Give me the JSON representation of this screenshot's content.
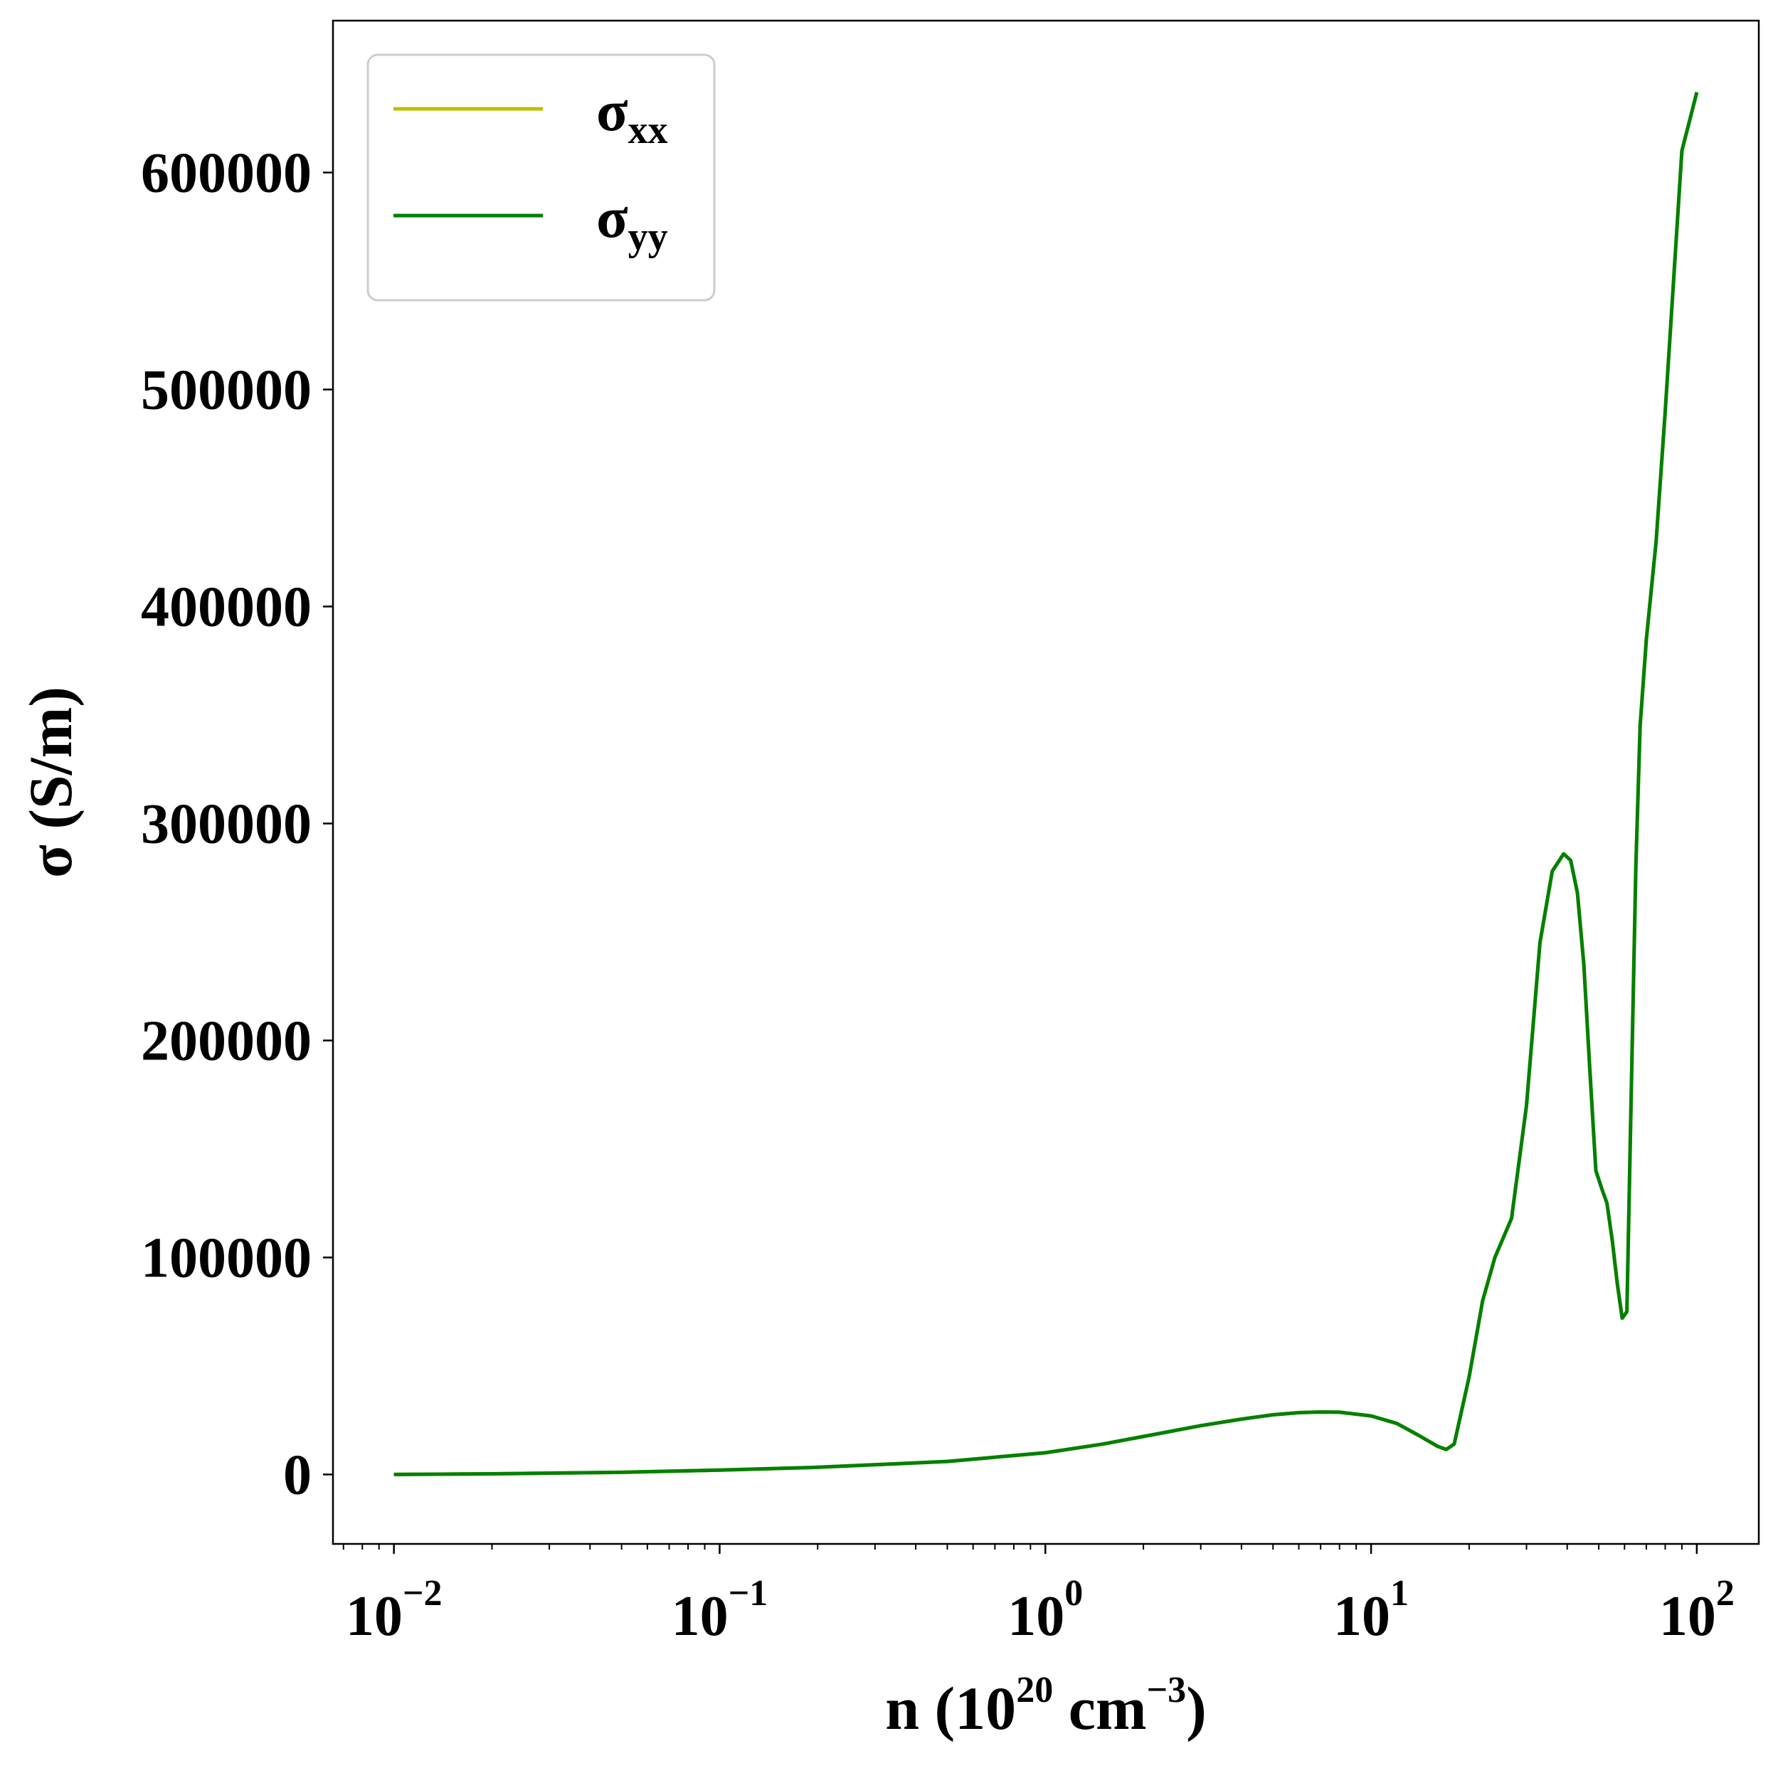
{
  "chart_data": {
    "type": "line",
    "xscale": "log",
    "xlim": [
      0.0065,
      155
    ],
    "ylim": [
      -32000,
      670000
    ],
    "grid": false,
    "legend_position": "upper-left",
    "xlabel": {
      "base": "n (10",
      "exp": "20",
      "mid": " cm",
      "exp2": "−3",
      "end": ")"
    },
    "ylabel": "σ (S/m)",
    "x_ticks": [
      {
        "value": 0.01,
        "base": "10",
        "exp": "−2"
      },
      {
        "value": 0.1,
        "base": "10",
        "exp": "−1"
      },
      {
        "value": 1,
        "base": "10",
        "exp": "0"
      },
      {
        "value": 10,
        "base": "10",
        "exp": "1"
      },
      {
        "value": 100,
        "base": "10",
        "exp": "2"
      }
    ],
    "y_ticks": [
      {
        "value": 0,
        "label": "0"
      },
      {
        "value": 100000,
        "label": "100000"
      },
      {
        "value": 200000,
        "label": "200000"
      },
      {
        "value": 300000,
        "label": "300000"
      },
      {
        "value": 400000,
        "label": "400000"
      },
      {
        "value": 500000,
        "label": "500000"
      },
      {
        "value": 600000,
        "label": "600000"
      }
    ],
    "series": [
      {
        "name": {
          "base": "σ",
          "sub": "xx"
        },
        "color": "#bfbf00",
        "x": [
          0.01,
          0.02,
          0.05,
          0.1,
          0.2,
          0.5,
          1,
          1.5,
          2,
          3,
          4,
          5,
          6,
          7,
          8,
          10,
          12,
          14,
          16,
          17,
          18,
          20,
          22,
          24,
          27,
          30,
          33,
          36,
          39,
          41,
          43,
          45,
          47,
          49,
          51,
          53,
          55,
          57,
          59,
          61,
          63,
          65,
          67,
          70,
          75,
          80,
          90,
          100
        ],
        "y": [
          0,
          300,
          1000,
          2000,
          3300,
          6000,
          10000,
          14000,
          17500,
          22500,
          25500,
          27500,
          28500,
          28800,
          28700,
          27000,
          23500,
          18000,
          13000,
          11500,
          14000,
          45000,
          80000,
          100000,
          118000,
          170000,
          245000,
          278000,
          286000,
          283000,
          268000,
          235000,
          185000,
          140000,
          132000,
          125000,
          108000,
          88000,
          72000,
          75000,
          180000,
          280000,
          345000,
          385000,
          430000,
          490000,
          610000,
          637000
        ]
      },
      {
        "name": {
          "base": "σ",
          "sub": "yy"
        },
        "color": "#008000",
        "x": [
          0.01,
          0.02,
          0.05,
          0.1,
          0.2,
          0.5,
          1,
          1.5,
          2,
          3,
          4,
          5,
          6,
          7,
          8,
          10,
          12,
          14,
          16,
          17,
          18,
          20,
          22,
          24,
          27,
          30,
          33,
          36,
          39,
          41,
          43,
          45,
          47,
          49,
          51,
          53,
          55,
          57,
          59,
          61,
          63,
          65,
          67,
          70,
          75,
          80,
          90,
          100
        ],
        "y": [
          0,
          300,
          1000,
          2000,
          3300,
          6000,
          10000,
          14000,
          17500,
          22500,
          25500,
          27500,
          28500,
          28800,
          28700,
          27000,
          23500,
          18000,
          13000,
          11500,
          14000,
          45000,
          80000,
          100000,
          118000,
          170000,
          245000,
          278000,
          286000,
          283000,
          268000,
          235000,
          185000,
          140000,
          132000,
          125000,
          108000,
          88000,
          72000,
          75000,
          180000,
          280000,
          345000,
          385000,
          430000,
          490000,
          610000,
          637000
        ]
      }
    ]
  }
}
